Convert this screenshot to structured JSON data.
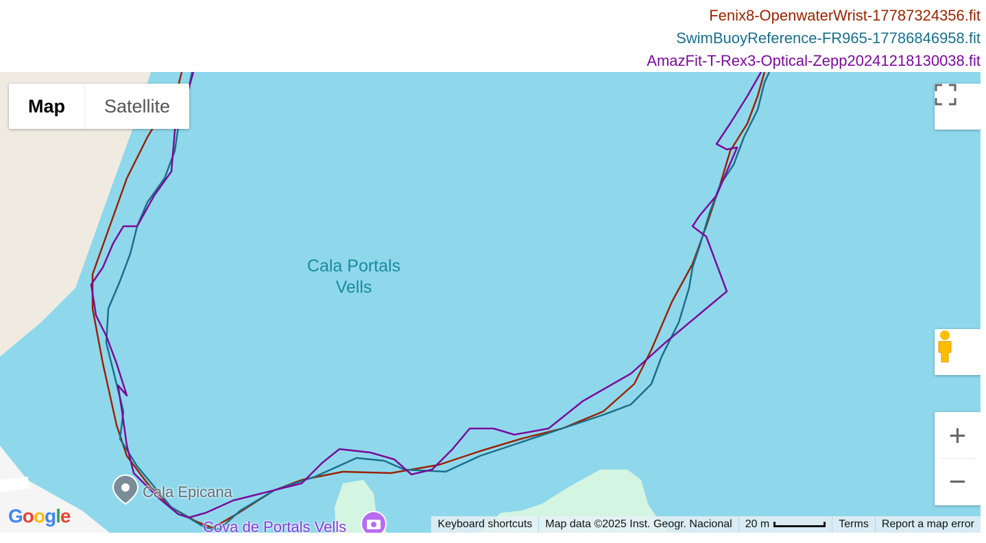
{
  "legend": [
    {
      "label": "Fenix8-OpenwaterWrist-17787324356.fit",
      "color": "#992200"
    },
    {
      "label": "SwimBuoyReference-FR965-17786846958.fit",
      "color": "#1a6e8a"
    },
    {
      "label": "AmazFit-T-Rex3-Optical-Zepp20241218130038.fit",
      "color": "#7a0a9a"
    }
  ],
  "map_type": {
    "map": "Map",
    "satellite": "Satellite",
    "selected": "Map"
  },
  "labels": {
    "bay": "Cala Portals\nVells",
    "poi1": "Cala Epicana",
    "poi2": "Cova de Portals Vells"
  },
  "footer": {
    "shortcuts": "Keyboard shortcuts",
    "data": "Map data ©2025 Inst. Geogr. Nacional",
    "scale": "20 m",
    "terms": "Terms",
    "report": "Report a map error"
  },
  "icons": {
    "fullscreen": "fullscreen-icon",
    "pegman": "pegman-icon",
    "zoom_in": "+",
    "zoom_out": "−"
  },
  "logo": "Google"
}
